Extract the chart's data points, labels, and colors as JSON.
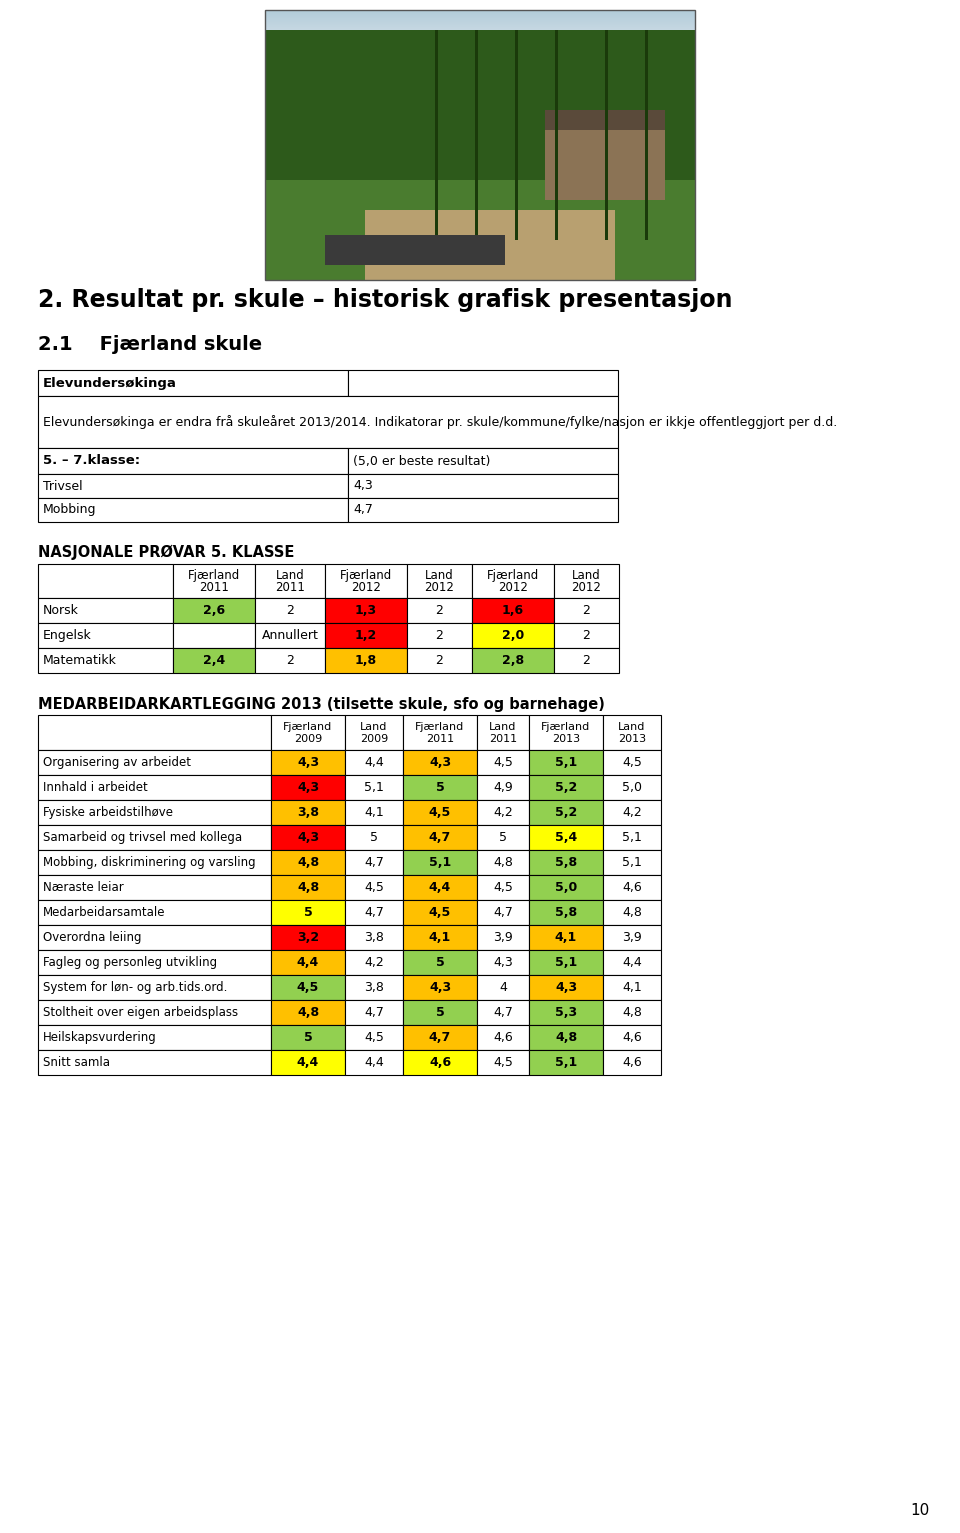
{
  "title1": "2. Resultat pr. skule – historisk grafisk presentasjon",
  "title2": "2.1    Fjærland skule",
  "info_table_rows": [
    [
      "Elevundersøkinga",
      ""
    ],
    [
      "Elevundersøkinga er endra frå skuleåret 2013/2014. Indikatorar pr. skule/kommune/fylke/nasjon er ikkje offentleggjort per d.d.",
      ""
    ],
    [
      "5. – 7.klasse:",
      "(5,0 er beste resultat)"
    ],
    [
      "Trivsel",
      "4,3"
    ],
    [
      "Mobbing",
      "4,7"
    ]
  ],
  "nasjonale_title": "NASJONALE PRØVAR 5. KLASSE",
  "nasjonale_headers_line1": [
    "",
    "Fjærland",
    "Land",
    "Fjærland",
    "Land",
    "Fjærland",
    "Land"
  ],
  "nasjonale_headers_line2": [
    "",
    "2011",
    "2011",
    "2012",
    "2012",
    "2012",
    "2012"
  ],
  "nasjonale_rows": [
    {
      "label": "Norsk",
      "values": [
        "2,6",
        "2",
        "1,3",
        "2",
        "1,6",
        "2"
      ],
      "colors": [
        "#92d050",
        "white",
        "#ff0000",
        "white",
        "#ff0000",
        "white"
      ]
    },
    {
      "label": "Engelsk",
      "values": [
        "",
        "Annullert",
        "1,2",
        "2",
        "2,0",
        "2"
      ],
      "colors": [
        "white",
        "white",
        "#ff0000",
        "white",
        "#ffff00",
        "white"
      ]
    },
    {
      "label": "Matematikk",
      "values": [
        "2,4",
        "2",
        "1,8",
        "2",
        "2,8",
        "2"
      ],
      "colors": [
        "#92d050",
        "white",
        "#ffc000",
        "white",
        "#92d050",
        "white"
      ]
    }
  ],
  "medarbeider_title": "MEDARBEIDARKARTLEGGING 2013 (tilsette skule, sfo og barnehage)",
  "medarbeider_headers_line1": [
    "",
    "Fjærland",
    "Land",
    "Fjærland",
    "Land",
    "Fjærland",
    "Land"
  ],
  "medarbeider_headers_line2": [
    "",
    "2009",
    "2009",
    "2011",
    "2011",
    "2013",
    "2013"
  ],
  "medarbeider_rows": [
    {
      "label": "Organisering av arbeidet",
      "values": [
        "4,3",
        "4,4",
        "4,3",
        "4,5",
        "5,1",
        "4,5"
      ],
      "colors": [
        "#ffc000",
        "white",
        "#ffc000",
        "white",
        "#92d050",
        "white"
      ]
    },
    {
      "label": "Innhald i arbeidet",
      "values": [
        "4,3",
        "5,1",
        "5",
        "4,9",
        "5,2",
        "5,0"
      ],
      "colors": [
        "#ff0000",
        "white",
        "#92d050",
        "white",
        "#92d050",
        "white"
      ]
    },
    {
      "label": "Fysiske arbeidstilhøve",
      "values": [
        "3,8",
        "4,1",
        "4,5",
        "4,2",
        "5,2",
        "4,2"
      ],
      "colors": [
        "#ffc000",
        "white",
        "#ffc000",
        "white",
        "#92d050",
        "white"
      ]
    },
    {
      "label": "Samarbeid og trivsel med kollega",
      "values": [
        "4,3",
        "5",
        "4,7",
        "5",
        "5,4",
        "5,1"
      ],
      "colors": [
        "#ff0000",
        "white",
        "#ffc000",
        "white",
        "#ffff00",
        "white"
      ]
    },
    {
      "label": "Mobbing, diskriminering og varsling",
      "values": [
        "4,8",
        "4,7",
        "5,1",
        "4,8",
        "5,8",
        "5,1"
      ],
      "colors": [
        "#ffc000",
        "white",
        "#92d050",
        "white",
        "#92d050",
        "white"
      ]
    },
    {
      "label": "Næraste leiar",
      "values": [
        "4,8",
        "4,5",
        "4,4",
        "4,5",
        "5,0",
        "4,6"
      ],
      "colors": [
        "#ffc000",
        "white",
        "#ffc000",
        "white",
        "#92d050",
        "white"
      ]
    },
    {
      "label": "Medarbeidarsamtale",
      "values": [
        "5",
        "4,7",
        "4,5",
        "4,7",
        "5,8",
        "4,8"
      ],
      "colors": [
        "#ffff00",
        "white",
        "#ffc000",
        "white",
        "#92d050",
        "white"
      ]
    },
    {
      "label": "Overordna leiing",
      "values": [
        "3,2",
        "3,8",
        "4,1",
        "3,9",
        "4,1",
        "3,9"
      ],
      "colors": [
        "#ff0000",
        "white",
        "#ffc000",
        "white",
        "#ffc000",
        "white"
      ]
    },
    {
      "label": "Fagleg og personleg utvikling",
      "values": [
        "4,4",
        "4,2",
        "5",
        "4,3",
        "5,1",
        "4,4"
      ],
      "colors": [
        "#ffc000",
        "white",
        "#92d050",
        "white",
        "#92d050",
        "white"
      ]
    },
    {
      "label": "System for løn- og arb.tids.ord.",
      "values": [
        "4,5",
        "3,8",
        "4,3",
        "4",
        "4,3",
        "4,1"
      ],
      "colors": [
        "#92d050",
        "white",
        "#ffc000",
        "white",
        "#ffc000",
        "white"
      ]
    },
    {
      "label": "Stoltheit over eigen arbeidsplass",
      "values": [
        "4,8",
        "4,7",
        "5",
        "4,7",
        "5,3",
        "4,8"
      ],
      "colors": [
        "#ffc000",
        "white",
        "#92d050",
        "white",
        "#92d050",
        "white"
      ]
    },
    {
      "label": "Heilskapsvurdering",
      "values": [
        "5",
        "4,5",
        "4,7",
        "4,6",
        "4,8",
        "4,6"
      ],
      "colors": [
        "#92d050",
        "white",
        "#ffc000",
        "white",
        "#92d050",
        "white"
      ]
    },
    {
      "label": "Snitt samla",
      "values": [
        "4,4",
        "4,4",
        "4,6",
        "4,5",
        "5,1",
        "4,6"
      ],
      "colors": [
        "#ffff00",
        "white",
        "#ffff00",
        "white",
        "#92d050",
        "white"
      ]
    }
  ],
  "page_number": "10",
  "bg_color": "#ffffff"
}
